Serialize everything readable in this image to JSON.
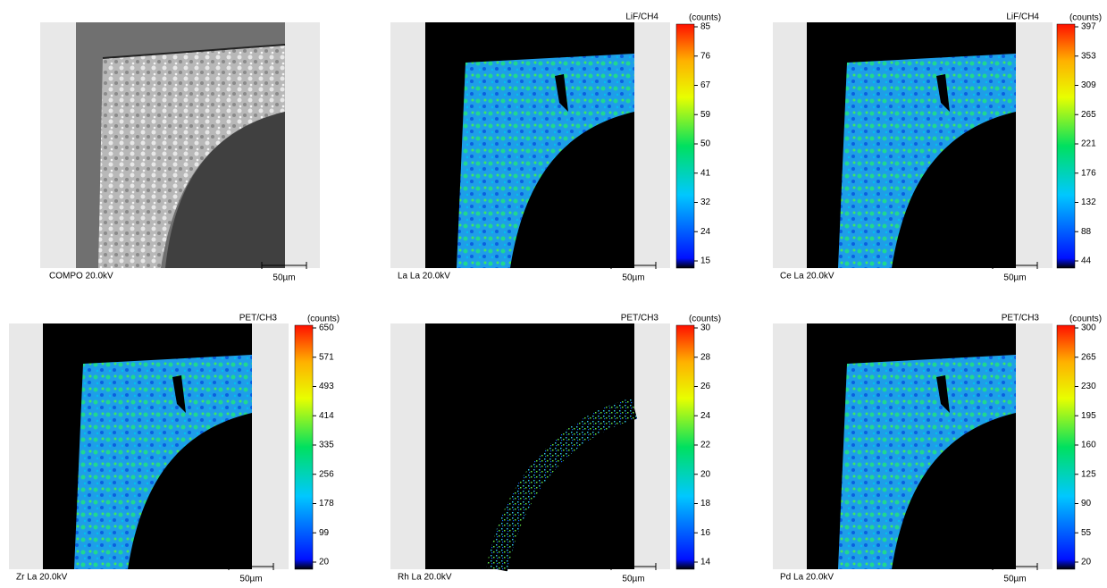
{
  "panels": [
    {
      "label": "COMPO 20.0kV",
      "scale_bar": "50µm"
    },
    {
      "label": "La La 20.0kV",
      "crystal": "LiF/CH4",
      "unit": "(counts)",
      "ticks": [
        85,
        76,
        67,
        59,
        50,
        41,
        32,
        24,
        15
      ],
      "scale_bar": "50µm"
    },
    {
      "label": "Ce La 20.0kV",
      "crystal": "LiF/CH4",
      "unit": "(counts)",
      "ticks": [
        397,
        353,
        309,
        265,
        221,
        176,
        132,
        88,
        44
      ],
      "scale_bar": "50µm"
    },
    {
      "label": "Zr La 20.0kV",
      "crystal": "PET/CH3",
      "unit": "(counts)",
      "ticks": [
        650,
        571,
        493,
        414,
        335,
        256,
        178,
        99,
        20
      ],
      "scale_bar": "50µm"
    },
    {
      "label": "Rh La 20.0kV",
      "crystal": "PET/CH3",
      "unit": "(counts)",
      "ticks": [
        30,
        28,
        26,
        24,
        22,
        20,
        18,
        16,
        14
      ],
      "scale_bar": "50µm"
    },
    {
      "label": "Pd La 20.0kV",
      "crystal": "PET/CH3",
      "unit": "(counts)",
      "ticks": [
        300,
        265,
        230,
        195,
        160,
        125,
        90,
        55,
        20
      ],
      "scale_bar": "50µm"
    }
  ]
}
